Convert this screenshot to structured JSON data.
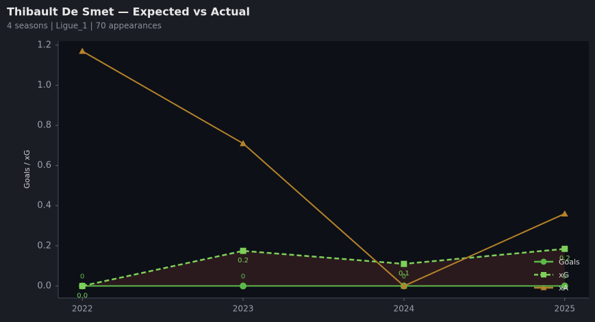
{
  "chart_data": {
    "type": "line",
    "title": "Thibault De Smet — Expected vs Actual",
    "subtitle": "4 seasons | Ligue_1 | 70 appearances",
    "y_label": "Goals / xG",
    "x": [
      2022,
      2023,
      2024,
      2025
    ],
    "xlim": [
      2021.85,
      2025.15
    ],
    "xticks": [
      2022,
      2023,
      2024,
      2025
    ],
    "ylim": [
      -0.06,
      1.22
    ],
    "yticks": [
      {
        "value": 0,
        "label": "0.0"
      },
      0.2,
      0.4,
      0.6,
      0.8,
      {
        "value": 1,
        "label": "1.0"
      },
      1.2
    ],
    "legend": "lower right",
    "fill_between": {
      "series": [
        0,
        1
      ],
      "color": "#2e1c1e"
    },
    "series": [
      {
        "name": "Goals",
        "color": "#5db84a",
        "marker": "circle",
        "dash": false,
        "values": [
          0,
          0,
          0,
          0
        ],
        "labels_position": "above"
      },
      {
        "name": "xG",
        "color": "#7ed05a",
        "marker": "square",
        "dash": true,
        "values": [
          0,
          0.175,
          0.11,
          0.185
        ],
        "value_labels": [
          "0.0",
          "0.2",
          "0.1",
          "0.2"
        ],
        "labels_position": "below"
      },
      {
        "name": "xA",
        "color": "#b5832a",
        "marker": "triangle",
        "dash": false,
        "values": [
          1.17,
          0.71,
          0,
          0.36
        ]
      }
    ]
  }
}
